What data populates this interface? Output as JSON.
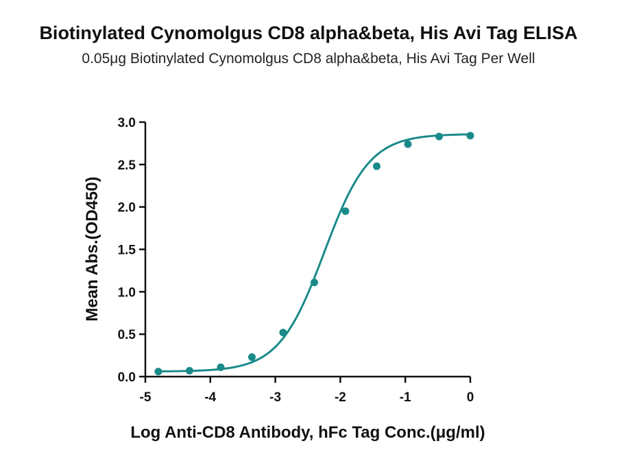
{
  "chart_data": {
    "type": "line",
    "title": "Biotinylated Cynomolgus CD8 alpha&beta, His Avi Tag ELISA",
    "subtitle": "0.05μg Biotinylated Cynomolgus CD8 alpha&beta, His Avi Tag Per Well",
    "xlabel": "Log Anti-CD8 Antibody, hFc Tag Conc.(μg/ml)",
    "ylabel": "Mean Abs.(OD450)",
    "xlim": [
      -5,
      0
    ],
    "ylim": [
      0,
      3.0
    ],
    "xticks": [
      -5,
      -4,
      -3,
      -2,
      -1,
      0
    ],
    "xtick_labels": [
      "-5",
      "-4",
      "-3",
      "-2",
      "-1",
      "0"
    ],
    "yticks": [
      0,
      0.5,
      1.0,
      1.5,
      2.0,
      2.5,
      3.0
    ],
    "ytick_labels": [
      "0.0",
      "0.5",
      "1.0",
      "1.5",
      "2.0",
      "2.5",
      "3.0"
    ],
    "grid": false,
    "legend": "none",
    "series": [
      {
        "color": "#1a8a8a",
        "marker": "circle",
        "x": [
          -4.8,
          -4.32,
          -3.84,
          -3.36,
          -2.88,
          -2.4,
          -1.92,
          -1.44,
          -0.96,
          -0.48,
          0.0
        ],
        "y": [
          0.06,
          0.07,
          0.11,
          0.23,
          0.52,
          1.11,
          1.95,
          2.48,
          2.74,
          2.83,
          2.84
        ],
        "fit": {
          "model": "4PL",
          "bottom": 0.06,
          "top": 2.86,
          "logEC50": -2.25,
          "hill": 1.25
        }
      }
    ]
  }
}
